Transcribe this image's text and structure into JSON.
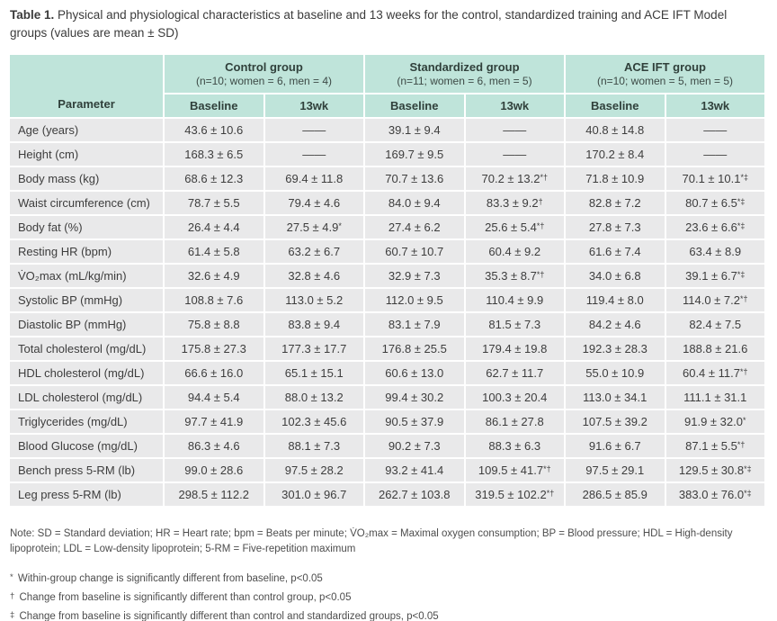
{
  "title": {
    "label": "Table 1.",
    "text": "Physical and physiological characteristics at baseline and 13 weeks for the control, standardized training and ACE IFT Model groups (values are mean ± SD)"
  },
  "colors": {
    "header_teal": "#bfe4da",
    "row_gray": "#e9e9ea",
    "text_dark": "#3d3d3d"
  },
  "table": {
    "parameter_header": "Parameter",
    "groups": [
      {
        "name": "Control group",
        "n_info": "(n=10; women = 6, men = 4)"
      },
      {
        "name": "Standardized group",
        "n_info": "(n=11; women = 6, men = 5)"
      },
      {
        "name": "ACE IFT group",
        "n_info": "(n=10; women = 5, men = 5)"
      }
    ],
    "sub_headers": [
      "Baseline",
      "13wk"
    ],
    "rows": [
      {
        "parameter": "Age (years)",
        "values": [
          "43.6 ± 10.6",
          "——",
          "39.1 ± 9.4",
          "——",
          "40.8 ± 14.8",
          "——"
        ]
      },
      {
        "parameter": "Height (cm)",
        "values": [
          "168.3 ± 6.5",
          "——",
          "169.7 ± 9.5",
          "——",
          "170.2 ± 8.4",
          "——"
        ]
      },
      {
        "parameter": "Body mass (kg)",
        "values": [
          "68.6 ± 12.3",
          "69.4 ± 11.8",
          "70.7 ± 13.6",
          "70.2 ± 13.2*†",
          "71.8 ± 10.9",
          "70.1 ± 10.1*‡"
        ]
      },
      {
        "parameter": "Waist circumference (cm)",
        "values": [
          "78.7 ± 5.5",
          "79.4 ± 4.6",
          "84.0 ± 9.4",
          "83.3 ± 9.2†",
          "82.8 ± 7.2",
          "80.7 ± 6.5*‡"
        ]
      },
      {
        "parameter": "Body fat (%)",
        "values": [
          "26.4 ± 4.4",
          "27.5 ± 4.9*",
          "27.4 ± 6.2",
          "25.6 ± 5.4*†",
          "27.8 ± 7.3",
          "23.6 ± 6.6*‡"
        ]
      },
      {
        "parameter": "Resting HR (bpm)",
        "values": [
          "61.4 ± 5.8",
          "63.2 ± 6.7",
          "60.7 ± 10.7",
          "60.4 ± 9.2",
          "61.6 ± 7.4",
          "63.4 ± 8.9"
        ]
      },
      {
        "parameter": "V̇O₂max (mL/kg/min)",
        "values": [
          "32.6 ± 4.9",
          "32.8 ± 4.6",
          "32.9 ± 7.3",
          "35.3 ± 8.7*†",
          "34.0 ± 6.8",
          "39.1 ± 6.7*‡"
        ]
      },
      {
        "parameter": "Systolic BP (mmHg)",
        "values": [
          "108.8 ± 7.6",
          "113.0 ± 5.2",
          "112.0 ± 9.5",
          "110.4 ± 9.9",
          "119.4 ± 8.0",
          "114.0 ± 7.2*†"
        ]
      },
      {
        "parameter": "Diastolic BP (mmHg)",
        "values": [
          "75.8 ± 8.8",
          "83.8 ± 9.4",
          "83.1 ± 7.9",
          "81.5 ± 7.3",
          "84.2 ± 4.6",
          "82.4 ± 7.5"
        ]
      },
      {
        "parameter": "Total cholesterol (mg/dL)",
        "values": [
          "175.8 ± 27.3",
          "177.3 ± 17.7",
          "176.8 ± 25.5",
          "179.4 ± 19.8",
          "192.3 ± 28.3",
          "188.8 ± 21.6"
        ]
      },
      {
        "parameter": "HDL cholesterol (mg/dL)",
        "values": [
          "66.6 ± 16.0",
          "65.1 ± 15.1",
          "60.6 ± 13.0",
          "62.7 ± 11.7",
          "55.0 ± 10.9",
          "60.4 ± 11.7*†"
        ]
      },
      {
        "parameter": "LDL cholesterol (mg/dL)",
        "values": [
          "94.4 ± 5.4",
          "88.0 ± 13.2",
          "99.4 ± 30.2",
          "100.3 ± 20.4",
          "113.0 ± 34.1",
          "111.1 ± 31.1"
        ]
      },
      {
        "parameter": "Triglycerides (mg/dL)",
        "values": [
          "97.7 ± 41.9",
          "102.3 ± 45.6",
          "90.5 ± 37.9",
          "86.1 ± 27.8",
          "107.5 ± 39.2",
          "91.9 ± 32.0*"
        ]
      },
      {
        "parameter": "Blood Glucose (mg/dL)",
        "values": [
          "86.3 ± 4.6",
          "88.1 ± 7.3",
          "90.2 ± 7.3",
          "88.3 ± 6.3",
          "91.6 ± 6.7",
          "87.1 ± 5.5*†"
        ]
      },
      {
        "parameter": "Bench press 5-RM (lb)",
        "values": [
          "99.0 ± 28.6",
          "97.5 ± 28.2",
          "93.2 ± 41.4",
          "109.5 ± 41.7*†",
          "97.5 ± 29.1",
          "129.5 ± 30.8*‡"
        ]
      },
      {
        "parameter": "Leg press 5-RM (lb)",
        "values": [
          "298.5 ± 112.2",
          "301.0 ± 96.7",
          "262.7 ± 103.8",
          "319.5 ± 102.2*†",
          "286.5 ± 85.9",
          "383.0 ± 76.0*‡"
        ]
      }
    ]
  },
  "notes": {
    "note_main": "Note: SD = Standard deviation; HR = Heart rate; bpm = Beats per minute; V̇O₂max = Maximal oxygen consumption; BP = Blood pressure; HDL = High-density lipoprotein; LDL = Low-density lipoprotein; 5-RM = Five-repetition maximum",
    "footnotes": [
      {
        "marker": "*",
        "text": "Within-group change is significantly different from baseline, p<0.05"
      },
      {
        "marker": "†",
        "text": "Change from baseline is significantly different than control group, p<0.05"
      },
      {
        "marker": "‡",
        "text": "Change from baseline is significantly different than control and standardized groups, p<0.05"
      }
    ]
  }
}
